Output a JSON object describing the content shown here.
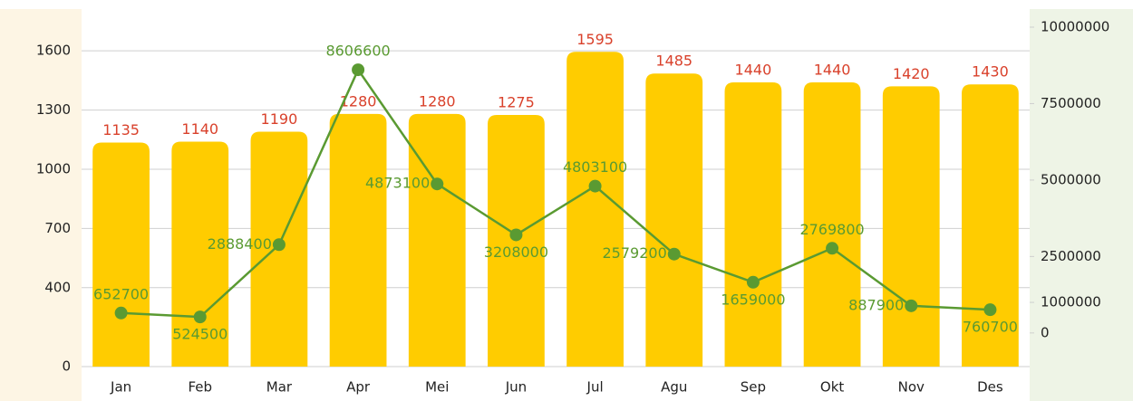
{
  "chart_data": {
    "type": "bar-line",
    "categories": [
      "Jan",
      "Feb",
      "Mar",
      "Apr",
      "Mei",
      "Jun",
      "Jul",
      "Agu",
      "Sep",
      "Okt",
      "Nov",
      "Des"
    ],
    "series": [
      {
        "type": "bar",
        "color": "#ffcc00",
        "label_color": "#d9412b",
        "values": [
          1135,
          1140,
          1190,
          1280,
          1280,
          1275,
          1595,
          1485,
          1440,
          1440,
          1420,
          1430
        ]
      },
      {
        "type": "line",
        "axis": "y2",
        "color": "#5a9a32",
        "values": [
          652700,
          524500,
          2888400,
          8606600,
          4873100,
          3208000,
          4803100,
          2579200,
          1659000,
          2769800,
          887900,
          760700
        ]
      }
    ],
    "ylim": [
      0,
      1720
    ],
    "yticks": [
      0,
      400,
      700,
      1000,
      1300,
      1600
    ],
    "y2lim": [
      -1100000,
      10000000
    ],
    "y2ticks": [
      0,
      1000000,
      2500000,
      5000000,
      7500000,
      10000000
    ],
    "grid": true
  }
}
